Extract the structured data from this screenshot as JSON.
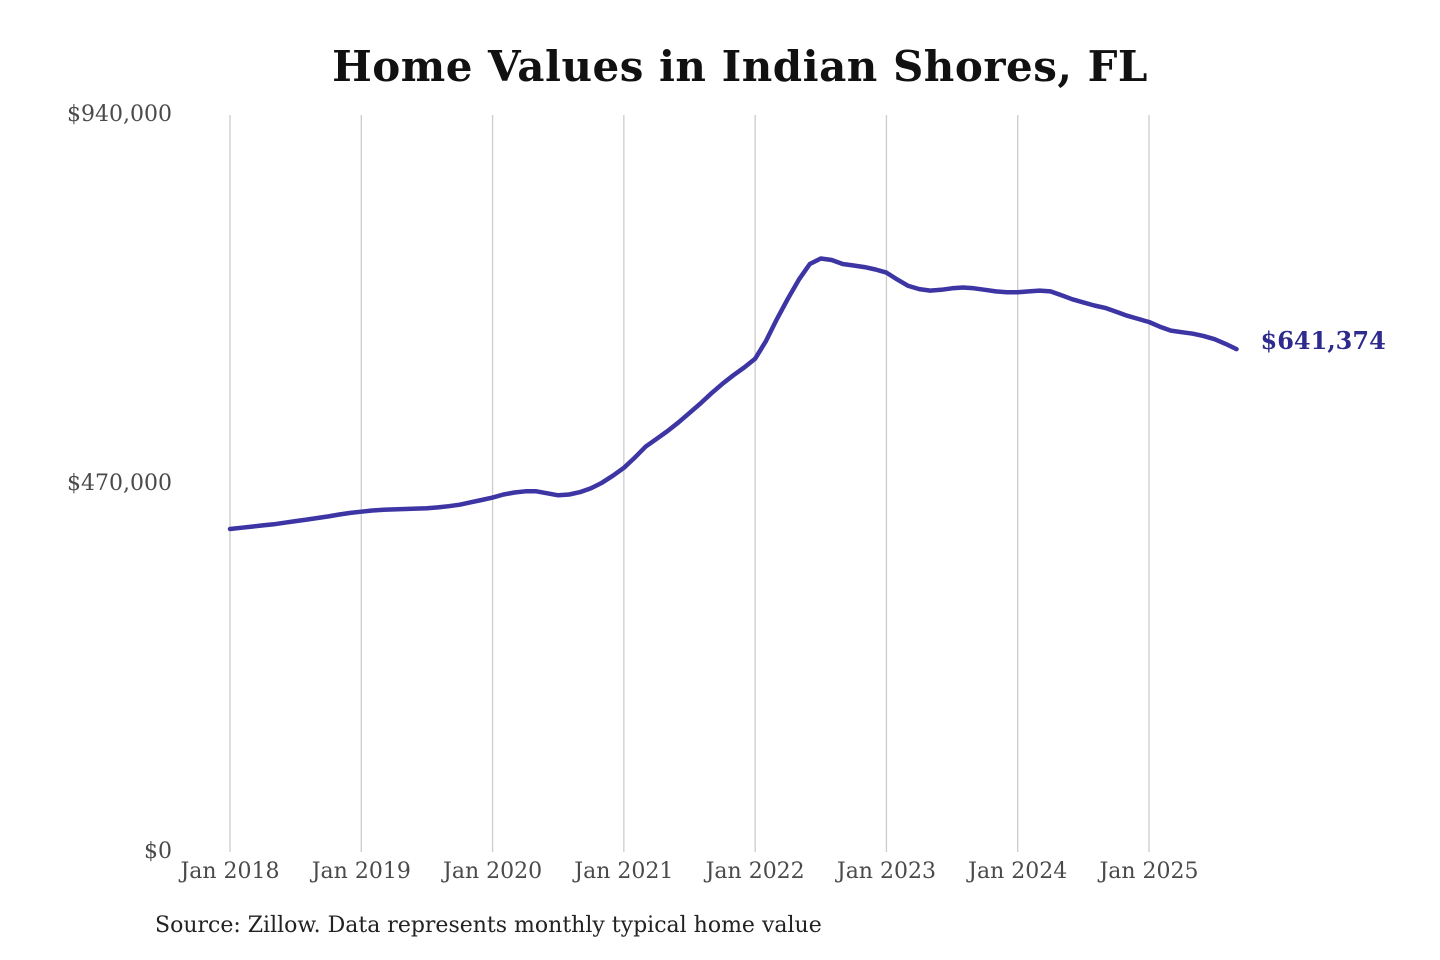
{
  "chart_data": {
    "type": "line",
    "title": "Home Values in Indian Shores, FL",
    "source_note": "Source: Zillow. Data represents monthly typical home value",
    "end_label": "$641,374",
    "xlabel": "",
    "ylabel": "",
    "ylim": [
      0,
      940000
    ],
    "grid": "vertical-only",
    "legend": "none",
    "frequency": "monthly",
    "x_tick_labels": [
      "Jan 2018",
      "Jan 2019",
      "Jan 2020",
      "Jan 2021",
      "Jan 2022",
      "Jan 2023",
      "Jan 2024",
      "Jan 2025"
    ],
    "y_ticks": [
      {
        "label": "$0",
        "value": 0
      },
      {
        "label": "$470,000",
        "value": 470000
      },
      {
        "label": "$940,000",
        "value": 940000
      }
    ],
    "months": [
      "2018-01",
      "2018-02",
      "2018-03",
      "2018-04",
      "2018-05",
      "2018-06",
      "2018-07",
      "2018-08",
      "2018-09",
      "2018-10",
      "2018-11",
      "2018-12",
      "2019-01",
      "2019-02",
      "2019-03",
      "2019-04",
      "2019-05",
      "2019-06",
      "2019-07",
      "2019-08",
      "2019-09",
      "2019-10",
      "2019-11",
      "2019-12",
      "2020-01",
      "2020-02",
      "2020-03",
      "2020-04",
      "2020-05",
      "2020-06",
      "2020-07",
      "2020-08",
      "2020-09",
      "2020-10",
      "2020-11",
      "2020-12",
      "2021-01",
      "2021-02",
      "2021-03",
      "2021-04",
      "2021-05",
      "2021-06",
      "2021-07",
      "2021-08",
      "2021-09",
      "2021-10",
      "2021-11",
      "2021-12",
      "2022-01",
      "2022-02",
      "2022-03",
      "2022-04",
      "2022-05",
      "2022-06",
      "2022-07",
      "2022-08",
      "2022-09",
      "2022-10",
      "2022-11",
      "2022-12",
      "2023-01",
      "2023-02",
      "2023-03",
      "2023-04",
      "2023-05",
      "2023-06",
      "2023-07",
      "2023-08",
      "2023-09",
      "2023-10",
      "2023-11",
      "2023-12",
      "2024-01",
      "2024-02",
      "2024-03",
      "2024-04",
      "2024-05",
      "2024-06",
      "2024-07",
      "2024-08",
      "2024-09",
      "2024-10",
      "2024-11",
      "2024-12",
      "2025-01",
      "2025-02",
      "2025-03",
      "2025-04",
      "2025-05",
      "2025-06",
      "2025-07",
      "2025-08",
      "2025-09"
    ],
    "values": [
      412000,
      413500,
      415000,
      416500,
      418000,
      420000,
      422000,
      424000,
      426000,
      428000,
      430500,
      432500,
      434000,
      435500,
      436500,
      437000,
      437500,
      438000,
      438500,
      439500,
      441000,
      443000,
      446000,
      449000,
      452000,
      456000,
      458500,
      460000,
      460000,
      457500,
      455000,
      456000,
      459000,
      464000,
      471000,
      480000,
      490000,
      503000,
      517000,
      527000,
      537000,
      548000,
      560000,
      572000,
      585000,
      597000,
      608000,
      618000,
      629000,
      652000,
      680000,
      706000,
      730000,
      750000,
      757000,
      755000,
      750000,
      748000,
      746000,
      743000,
      739000,
      730000,
      722000,
      718000,
      716000,
      717000,
      719000,
      720000,
      719000,
      717000,
      715000,
      714000,
      714000,
      715000,
      716000,
      715000,
      710000,
      705000,
      701000,
      697000,
      694000,
      689000,
      684000,
      680000,
      676000,
      670000,
      665000,
      663000,
      661000,
      658000,
      654000,
      648000,
      641374
    ],
    "colors": {
      "line": "#3c35a3",
      "end_label": "#2f2a8e",
      "gridline": "#cccccc",
      "tick_label": "#4a4a4a",
      "title": "#111111",
      "source": "#222222",
      "background": "#ffffff"
    }
  }
}
